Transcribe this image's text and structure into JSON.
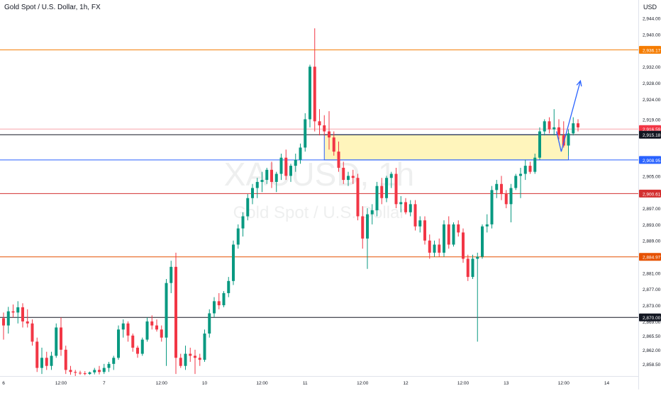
{
  "header": {
    "title": "Gold Spot / U.S. Dollar, 1h, FX",
    "currency": "USD"
  },
  "watermark": {
    "symbol": "XAUUSD, 1h",
    "description": "Gold Spot / U.S. Dollar"
  },
  "colors": {
    "up": "#089981",
    "down": "#f23645",
    "zone_fill": "#fff3b0",
    "zone_border": "#2962ff",
    "arrow": "#2962ff"
  },
  "chart_data": {
    "type": "candlestick",
    "price_range": [
      2855.5,
      2948.5
    ],
    "price_ticks": [
      "2,944.00",
      "2,940.00",
      "2,936.00",
      "2,932.00",
      "2,928.00",
      "2,924.00",
      "2,919.00",
      "2,915.00",
      "2,905.00",
      "2,901.00",
      "2,897.00",
      "2,893.00",
      "2,889.00",
      "2,881.00",
      "2,877.00",
      "2,873.00",
      "2,869.00",
      "2,865.50",
      "2,862.00",
      "2,858.50"
    ],
    "x_labels": [
      {
        "text": "6",
        "index": 0
      },
      {
        "text": "12:00",
        "index": 12
      },
      {
        "text": "7",
        "index": 21
      },
      {
        "text": "12:00",
        "index": 33
      },
      {
        "text": "10",
        "index": 42
      },
      {
        "text": "12:00",
        "index": 54
      },
      {
        "text": "11",
        "index": 63
      },
      {
        "text": "12:00",
        "index": 75
      },
      {
        "text": "12",
        "index": 84
      },
      {
        "text": "12:00",
        "index": 96
      },
      {
        "text": "13",
        "index": 105
      },
      {
        "text": "12:00",
        "index": 117
      },
      {
        "text": "14",
        "index": 126
      }
    ],
    "horizontal_lines": [
      {
        "price": 2936.17,
        "label": "2,936.17",
        "color": "#f57c00"
      },
      {
        "price": 2916.59,
        "label": "2,916.59",
        "color": "#f23645"
      },
      {
        "price": 2915.18,
        "label": "2,915.18",
        "color": "#131722"
      },
      {
        "price": 2908.95,
        "label": "2,908.95",
        "color": "#2962ff"
      },
      {
        "price": 2900.61,
        "label": "2,900.61",
        "color": "#d32f2f"
      },
      {
        "price": 2884.97,
        "label": "2,884.97",
        "color": "#e65100"
      },
      {
        "price": 2870.0,
        "label": "2,870.00",
        "color": "#131722"
      }
    ],
    "zone": {
      "from_index": 67,
      "to_index": 118,
      "top": 2915.18,
      "bottom": 2908.95
    },
    "projection_arrow": [
      {
        "index": 115.5,
        "price": 2916.0
      },
      {
        "index": 116.5,
        "price": 2911.0
      },
      {
        "index": 120.5,
        "price": 2928.5
      }
    ],
    "candles": [
      [
        2869.8,
        2871.2,
        2864.5,
        2868.0
      ],
      [
        2868.0,
        2872.6,
        2866.0,
        2871.5
      ],
      [
        2871.5,
        2873.2,
        2870.0,
        2871.2
      ],
      [
        2871.2,
        2874.0,
        2868.5,
        2872.5
      ],
      [
        2872.5,
        2873.5,
        2867.5,
        2869.0
      ],
      [
        2869.0,
        2872.0,
        2867.5,
        2868.5
      ],
      [
        2868.5,
        2869.5,
        2863.0,
        2864.0
      ],
      [
        2864.0,
        2865.0,
        2856.5,
        2857.5
      ],
      [
        2857.5,
        2862.5,
        2856.0,
        2860.0
      ],
      [
        2860.0,
        2861.5,
        2857.0,
        2858.0
      ],
      [
        2858.0,
        2861.5,
        2857.0,
        2860.5
      ],
      [
        2860.5,
        2868.5,
        2860.0,
        2867.5
      ],
      [
        2867.5,
        2870.0,
        2860.5,
        2862.0
      ],
      [
        2862.0,
        2863.0,
        2856.0,
        2857.0
      ],
      [
        2857.0,
        2858.0,
        2855.8,
        2856.5
      ],
      [
        2856.5,
        2857.0,
        2855.5,
        2856.3
      ],
      [
        2856.3,
        2856.8,
        2855.8,
        2856.2
      ],
      [
        2856.2,
        2856.7,
        2855.7,
        2856.0
      ],
      [
        2856.0,
        2856.6,
        2855.8,
        2856.4
      ],
      [
        2856.4,
        2857.5,
        2855.9,
        2857.0
      ],
      [
        2857.0,
        2858.0,
        2855.9,
        2856.5
      ],
      [
        2856.5,
        2858.5,
        2856.0,
        2857.5
      ],
      [
        2857.5,
        2859.0,
        2856.5,
        2858.5
      ],
      [
        2858.5,
        2860.5,
        2857.0,
        2860.0
      ],
      [
        2860.0,
        2868.0,
        2859.5,
        2867.0
      ],
      [
        2867.0,
        2869.5,
        2865.0,
        2868.5
      ],
      [
        2868.5,
        2869.0,
        2864.0,
        2865.5
      ],
      [
        2865.5,
        2866.0,
        2861.5,
        2862.5
      ],
      [
        2862.5,
        2863.0,
        2860.0,
        2861.0
      ],
      [
        2861.0,
        2865.0,
        2860.5,
        2864.5
      ],
      [
        2864.5,
        2870.0,
        2864.0,
        2869.0
      ],
      [
        2869.0,
        2870.5,
        2867.0,
        2868.0
      ],
      [
        2868.0,
        2869.5,
        2866.5,
        2867.0
      ],
      [
        2867.0,
        2868.0,
        2864.0,
        2865.0
      ],
      [
        2865.0,
        2879.5,
        2858.0,
        2878.5
      ],
      [
        2878.5,
        2884.0,
        2876.0,
        2882.5
      ],
      [
        2882.5,
        2886.0,
        2856.0,
        2860.0
      ],
      [
        2860.0,
        2861.0,
        2857.5,
        2858.0
      ],
      [
        2858.0,
        2863.0,
        2857.0,
        2861.0
      ],
      [
        2861.0,
        2862.5,
        2859.0,
        2860.5
      ],
      [
        2860.5,
        2862.0,
        2856.0,
        2860.0
      ],
      [
        2860.0,
        2861.0,
        2858.0,
        2859.5
      ],
      [
        2859.5,
        2867.0,
        2859.0,
        2866.0
      ],
      [
        2866.0,
        2872.0,
        2865.0,
        2871.0
      ],
      [
        2871.0,
        2875.0,
        2870.0,
        2874.0
      ],
      [
        2874.0,
        2876.0,
        2872.0,
        2873.0
      ],
      [
        2873.0,
        2876.5,
        2872.5,
        2876.0
      ],
      [
        2876.0,
        2880.0,
        2875.0,
        2879.0
      ],
      [
        2879.0,
        2889.0,
        2878.0,
        2888.0
      ],
      [
        2888.0,
        2893.0,
        2887.0,
        2892.0
      ],
      [
        2892.0,
        2896.0,
        2890.0,
        2895.0
      ],
      [
        2895.0,
        2900.5,
        2894.0,
        2899.5
      ],
      [
        2899.5,
        2903.0,
        2898.0,
        2902.0
      ],
      [
        2902.0,
        2904.5,
        2899.5,
        2903.5
      ],
      [
        2903.5,
        2906.0,
        2901.0,
        2904.0
      ],
      [
        2904.0,
        2907.0,
        2903.0,
        2906.5
      ],
      [
        2906.5,
        2908.5,
        2902.0,
        2903.5
      ],
      [
        2903.5,
        2906.0,
        2901.0,
        2905.5
      ],
      [
        2905.5,
        2910.5,
        2904.0,
        2909.5
      ],
      [
        2909.5,
        2911.5,
        2904.0,
        2905.0
      ],
      [
        2905.0,
        2908.0,
        2903.5,
        2907.5
      ],
      [
        2907.5,
        2910.5,
        2906.0,
        2909.0
      ],
      [
        2909.0,
        2913.0,
        2908.0,
        2912.0
      ],
      [
        2912.0,
        2920.5,
        2911.0,
        2919.0
      ],
      [
        2919.0,
        2932.5,
        2917.0,
        2932.0
      ],
      [
        2932.0,
        2941.5,
        2916.0,
        2918.5
      ],
      [
        2918.5,
        2921.5,
        2915.0,
        2917.5
      ],
      [
        2917.5,
        2920.0,
        2915.0,
        2916.0
      ],
      [
        2916.0,
        2921.0,
        2911.5,
        2914.5
      ],
      [
        2914.5,
        2916.0,
        2910.0,
        2911.0
      ],
      [
        2911.0,
        2913.5,
        2906.0,
        2907.0
      ],
      [
        2907.0,
        2908.5,
        2903.0,
        2904.0
      ],
      [
        2904.0,
        2906.0,
        2902.5,
        2905.0
      ],
      [
        2905.0,
        2906.5,
        2903.0,
        2904.5
      ],
      [
        2904.5,
        2905.5,
        2894.0,
        2895.0
      ],
      [
        2895.0,
        2897.5,
        2887.0,
        2889.5
      ],
      [
        2889.5,
        2897.0,
        2882.0,
        2895.5
      ],
      [
        2895.5,
        2898.0,
        2893.0,
        2896.5
      ],
      [
        2896.5,
        2903.5,
        2895.0,
        2902.5
      ],
      [
        2902.5,
        2904.5,
        2898.0,
        2899.5
      ],
      [
        2899.5,
        2905.0,
        2898.5,
        2904.5
      ],
      [
        2904.5,
        2906.0,
        2902.0,
        2905.5
      ],
      [
        2905.5,
        2907.0,
        2897.0,
        2898.0
      ],
      [
        2898.0,
        2900.0,
        2896.0,
        2898.5
      ],
      [
        2898.5,
        2899.5,
        2895.5,
        2896.0
      ],
      [
        2896.0,
        2899.0,
        2895.0,
        2898.0
      ],
      [
        2898.0,
        2899.0,
        2891.5,
        2892.5
      ],
      [
        2892.5,
        2895.0,
        2891.0,
        2894.0
      ],
      [
        2894.0,
        2895.0,
        2888.0,
        2889.0
      ],
      [
        2889.0,
        2890.5,
        2884.5,
        2886.0
      ],
      [
        2886.0,
        2889.0,
        2885.0,
        2888.0
      ],
      [
        2888.0,
        2889.5,
        2885.0,
        2886.0
      ],
      [
        2886.0,
        2894.0,
        2885.0,
        2893.0
      ],
      [
        2893.0,
        2895.0,
        2887.0,
        2888.0
      ],
      [
        2888.0,
        2893.5,
        2887.5,
        2893.0
      ],
      [
        2893.0,
        2894.0,
        2890.0,
        2891.0
      ],
      [
        2891.0,
        2892.0,
        2883.5,
        2884.5
      ],
      [
        2884.5,
        2885.5,
        2879.0,
        2880.0
      ],
      [
        2880.0,
        2885.5,
        2879.5,
        2884.5
      ],
      [
        2884.5,
        2886.0,
        2864.0,
        2885.0
      ],
      [
        2885.0,
        2893.0,
        2884.5,
        2892.5
      ],
      [
        2892.5,
        2895.5,
        2891.0,
        2893.0
      ],
      [
        2893.0,
        2902.5,
        2892.0,
        2901.5
      ],
      [
        2901.5,
        2904.0,
        2899.5,
        2903.0
      ],
      [
        2903.0,
        2905.0,
        2899.0,
        2900.5
      ],
      [
        2900.5,
        2901.5,
        2897.0,
        2898.0
      ],
      [
        2898.0,
        2903.0,
        2893.5,
        2902.0
      ],
      [
        2902.0,
        2905.5,
        2901.5,
        2905.0
      ],
      [
        2905.0,
        2907.0,
        2899.5,
        2905.5
      ],
      [
        2905.5,
        2909.0,
        2904.0,
        2907.5
      ],
      [
        2907.5,
        2908.5,
        2905.5,
        2906.0
      ],
      [
        2906.0,
        2910.5,
        2905.5,
        2909.5
      ],
      [
        2909.5,
        2917.0,
        2909.0,
        2916.0
      ],
      [
        2916.0,
        2919.0,
        2915.0,
        2918.5
      ],
      [
        2918.5,
        2919.5,
        2915.5,
        2916.5
      ],
      [
        2916.5,
        2921.5,
        2915.0,
        2917.0
      ],
      [
        2917.0,
        2919.0,
        2914.0,
        2915.0
      ],
      [
        2915.0,
        2918.5,
        2912.0,
        2912.5
      ],
      [
        2912.5,
        2916.5,
        2910.0,
        2915.5
      ],
      [
        2915.5,
        2919.5,
        2915.0,
        2918.0
      ],
      [
        2918.0,
        2919.0,
        2916.0,
        2917.0
      ]
    ]
  }
}
